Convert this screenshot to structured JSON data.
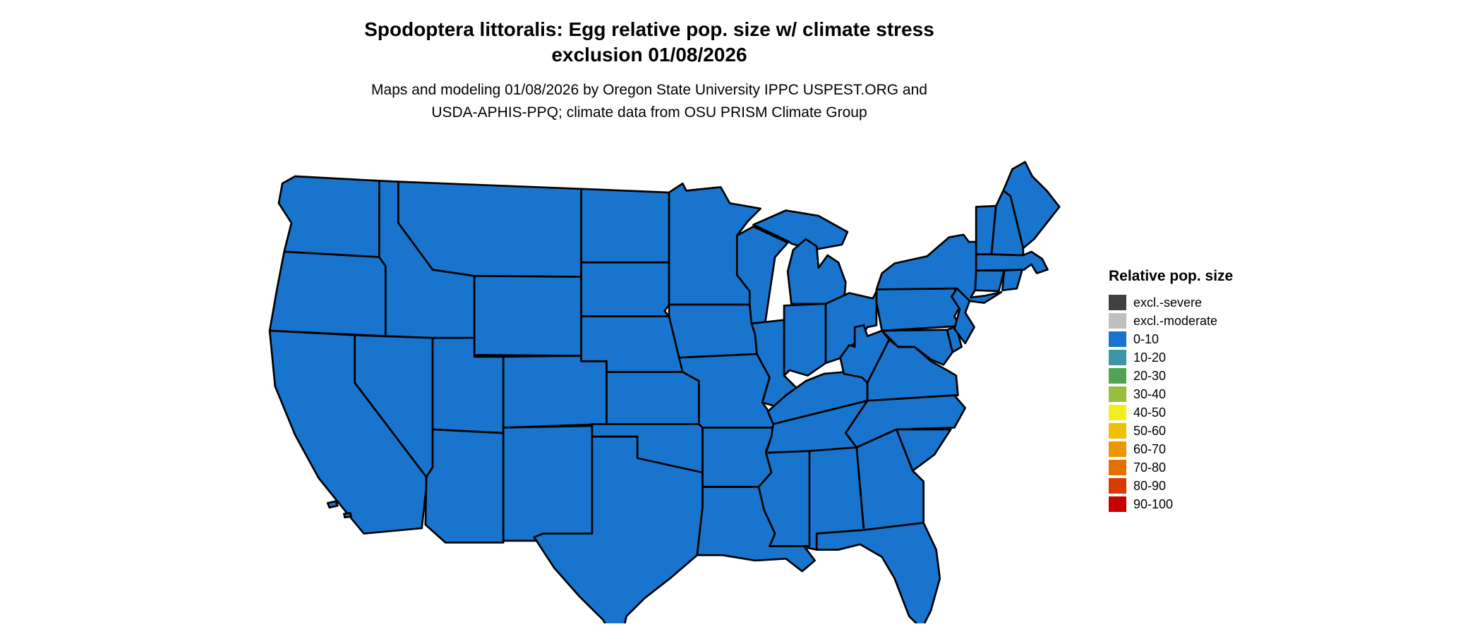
{
  "title": {
    "line1": "Spodoptera littoralis: Egg relative pop. size w/ climate stress",
    "line2": "exclusion 01/08/2026"
  },
  "subtitle": {
    "line1": "Maps and modeling 01/08/2026 by Oregon State University IPPC USPEST.ORG and",
    "line2": "USDA-APHIS-PPQ; climate data from OSU PRISM Climate Group"
  },
  "legend": {
    "title": "Relative pop. size",
    "items": [
      {
        "label": "excl.-severe",
        "color": "#404040"
      },
      {
        "label": "excl.-moderate",
        "color": "#BFBFBF"
      },
      {
        "label": "0-10",
        "color": "#1874CD"
      },
      {
        "label": "10-20",
        "color": "#3C96A8"
      },
      {
        "label": "20-30",
        "color": "#52A352"
      },
      {
        "label": "30-40",
        "color": "#97BE3F"
      },
      {
        "label": "40-50",
        "color": "#F2EE1C"
      },
      {
        "label": "50-60",
        "color": "#EFC000"
      },
      {
        "label": "60-70",
        "color": "#EE9600"
      },
      {
        "label": "70-80",
        "color": "#E56F00"
      },
      {
        "label": "80-90",
        "color": "#D93A00"
      },
      {
        "label": "90-100",
        "color": "#C80000"
      }
    ]
  },
  "map": {
    "region": "Contiguous United States",
    "fill_category_all_states": "0-10",
    "fill_color": "#1874CD",
    "border_color": "#000000"
  },
  "chart_data": {
    "type": "choropleth",
    "title": "Spodoptera littoralis: Egg relative pop. size w/ climate stress exclusion 01/08/2026",
    "legend_title": "Relative pop. size",
    "categories": [
      "excl.-severe",
      "excl.-moderate",
      "0-10",
      "10-20",
      "20-30",
      "30-40",
      "40-50",
      "50-60",
      "60-70",
      "70-80",
      "80-90",
      "90-100"
    ],
    "observation": "All contiguous US states are shaded in the 0-10 relative population size category"
  }
}
